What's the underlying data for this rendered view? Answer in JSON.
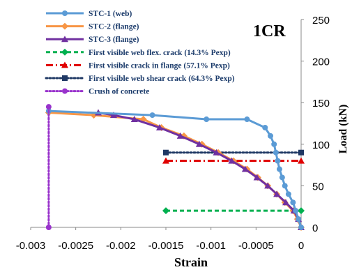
{
  "chart_data": {
    "type": "line",
    "title": "1CR",
    "xlabel": "Strain",
    "ylabel": "Load (kN)",
    "xlim": [
      -0.003,
      0
    ],
    "ylim": [
      0,
      250
    ],
    "x_ticks": [
      "-0.003",
      "-0.0025",
      "-0.002",
      "-0.0015",
      "-0.001",
      "-0.0005",
      "0"
    ],
    "y_ticks": [
      "0",
      "50",
      "100",
      "150",
      "200",
      "250"
    ],
    "y_axis_position": "right",
    "legend_position": "top-left",
    "grid": false,
    "series": [
      {
        "name": "STC-1 (web)",
        "color": "#5b9bd5",
        "line": "solid",
        "marker": "circle",
        "points": [
          [
            0,
            0
          ],
          [
            -3e-05,
            10
          ],
          [
            -6e-05,
            20
          ],
          [
            -9e-05,
            30
          ],
          [
            -0.00014,
            40
          ],
          [
            -0.00018,
            50
          ],
          [
            -0.00021,
            60
          ],
          [
            -0.00024,
            70
          ],
          [
            -0.00026,
            80
          ],
          [
            -0.00028,
            90
          ],
          [
            -0.0003,
            100
          ],
          [
            -0.00034,
            110
          ],
          [
            -0.0004,
            120
          ],
          [
            -0.0006,
            130
          ],
          [
            -0.00105,
            130
          ],
          [
            -0.00165,
            135
          ],
          [
            -0.0028,
            140
          ]
        ]
      },
      {
        "name": "STC-2 (flange)",
        "color": "#f79646",
        "line": "solid",
        "marker": "diamond",
        "points": [
          [
            0,
            0
          ],
          [
            -4e-05,
            10
          ],
          [
            -9e-05,
            20
          ],
          [
            -0.00018,
            30
          ],
          [
            -0.00027,
            40
          ],
          [
            -0.00037,
            50
          ],
          [
            -0.00048,
            60
          ],
          [
            -0.0006,
            70
          ],
          [
            -0.00075,
            80
          ],
          [
            -0.00092,
            90
          ],
          [
            -0.0011,
            100
          ],
          [
            -0.0013,
            110
          ],
          [
            -0.00155,
            120
          ],
          [
            -0.00175,
            130
          ],
          [
            -0.0023,
            135
          ],
          [
            -0.0028,
            138
          ]
        ]
      },
      {
        "name": "STC-3 (flange)",
        "color": "#7030a0",
        "line": "solid",
        "marker": "triangle",
        "points": [
          [
            0,
            0
          ],
          [
            -3e-05,
            10
          ],
          [
            -8e-05,
            20
          ],
          [
            -0.00017,
            30
          ],
          [
            -0.00027,
            40
          ],
          [
            -0.00037,
            50
          ],
          [
            -0.00049,
            60
          ],
          [
            -0.00062,
            70
          ],
          [
            -0.00077,
            80
          ],
          [
            -0.00094,
            90
          ],
          [
            -0.00113,
            100
          ],
          [
            -0.00134,
            110
          ],
          [
            -0.00157,
            120
          ],
          [
            -0.00185,
            130
          ],
          [
            -0.00208,
            135
          ],
          [
            -0.00225,
            138
          ]
        ]
      },
      {
        "name": "First visible web flex. crack (14.3% Pexp)",
        "color": "#00b050",
        "line": "dashed",
        "marker": "diamond",
        "points": [
          [
            -0.0015,
            20
          ],
          [
            0,
            20
          ]
        ]
      },
      {
        "name": "First visible crack in flange (57.1% Pexp)",
        "color": "#e00000",
        "line": "dashdot",
        "marker": "triangle",
        "points": [
          [
            -0.0015,
            80
          ],
          [
            0,
            80
          ]
        ]
      },
      {
        "name": "First visible web shear crack (64.3% Pexp)",
        "color": "#1f3864",
        "line": "dotted",
        "marker": "square",
        "points": [
          [
            -0.0015,
            90
          ],
          [
            0,
            90
          ]
        ]
      },
      {
        "name": "Crush of concrete",
        "color": "#9933cc",
        "line": "dotted",
        "marker": "circle",
        "points": [
          [
            -0.0028,
            0
          ],
          [
            -0.0028,
            145
          ]
        ]
      }
    ]
  }
}
